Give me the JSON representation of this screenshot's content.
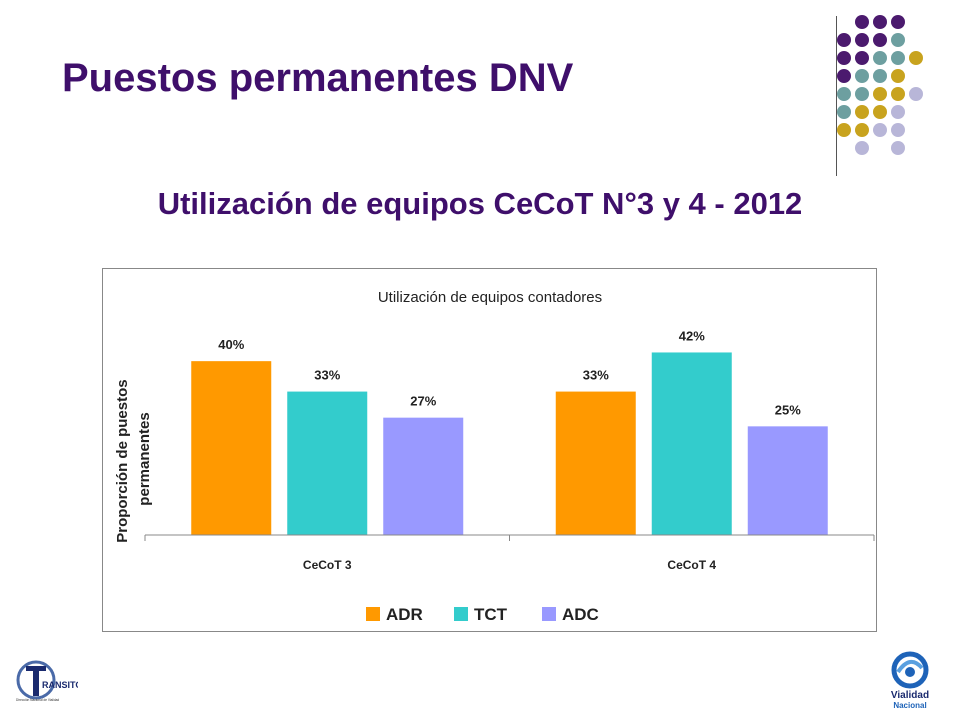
{
  "slide": {
    "title": "Puestos permanentes DNV",
    "subtitle": "Utilización de equipos CeCoT N°3 y 4 - 2012"
  },
  "decor": {
    "dot_colors": [
      "#4b1a6e",
      "#6d9fa0",
      "#c8a31e",
      "#b8b6d8"
    ]
  },
  "chart_data": {
    "type": "bar",
    "title": "Utilización de equipos contadores",
    "ylabel": "Proporción de puestos permanentes",
    "xlabel": "",
    "categories": [
      "CeCoT 3",
      "CeCoT 4"
    ],
    "series": [
      {
        "name": "ADR",
        "color": "#ff9900",
        "values": [
          40,
          33
        ],
        "labels": [
          "40%",
          "33%"
        ]
      },
      {
        "name": "TCT",
        "color": "#33cccc",
        "values": [
          33,
          42
        ],
        "labels": [
          "33%",
          "42%"
        ]
      },
      {
        "name": "ADC",
        "color": "#9999ff",
        "values": [
          27,
          25
        ],
        "labels": [
          "27%",
          "25%"
        ]
      }
    ],
    "ylim": [
      0,
      52
    ],
    "grid": false,
    "legend": "bottom"
  },
  "logos": {
    "left": {
      "text": "RANSITO",
      "subtext": "Dirección Nacional de Vialidad"
    },
    "right": {
      "line1": "Vialidad",
      "line2": "Nacional"
    }
  }
}
